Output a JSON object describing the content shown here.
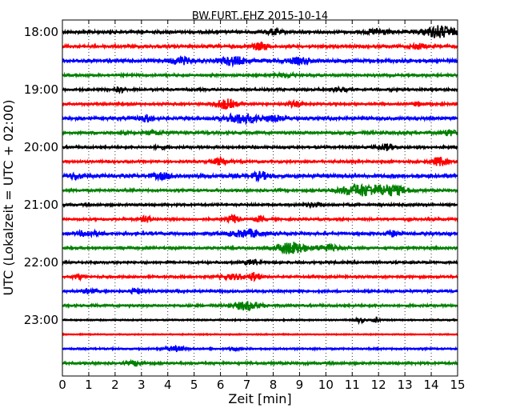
{
  "chart_data": {
    "type": "line",
    "title": "BW.FURT..EHZ 2015-10-14",
    "xlabel": "Zeit  [min]",
    "ylabel": "UTC (Lokalzeit = UTC + 02:00)",
    "xlim": [
      0,
      15
    ],
    "x_ticks": [
      "0",
      "1",
      "2",
      "3",
      "4",
      "5",
      "6",
      "7",
      "8",
      "9",
      "10",
      "11",
      "12",
      "13",
      "14",
      "15"
    ],
    "y_ticks": [
      "18:00",
      "19:00",
      "20:00",
      "21:00",
      "22:00",
      "23:00"
    ],
    "trace_interval_min": 15,
    "grid": "vertical-dotted",
    "colors": [
      "#000000",
      "#ff0000",
      "#0000ff",
      "#008000"
    ],
    "traces": [
      {
        "time": "18:00",
        "color": "#000000",
        "amplitude": 0.25,
        "bursts": [
          {
            "t": 14.3,
            "a": 1.0,
            "w": 0.6
          },
          {
            "t": 12.0,
            "a": 0.5,
            "w": 0.4
          },
          {
            "t": 8.0,
            "a": 0.4,
            "w": 0.3
          }
        ]
      },
      {
        "time": "18:15",
        "color": "#ff0000",
        "amplitude": 0.25,
        "bursts": [
          {
            "t": 7.5,
            "a": 0.6,
            "w": 0.3
          },
          {
            "t": 13.5,
            "a": 0.4,
            "w": 0.3
          }
        ]
      },
      {
        "time": "18:30",
        "color": "#0000ff",
        "amplitude": 0.3,
        "bursts": [
          {
            "t": 6.5,
            "a": 0.6,
            "w": 0.5
          },
          {
            "t": 4.5,
            "a": 0.5,
            "w": 0.4
          },
          {
            "t": 9.0,
            "a": 0.4,
            "w": 0.5
          }
        ]
      },
      {
        "time": "18:45",
        "color": "#008000",
        "amplitude": 0.2,
        "bursts": [
          {
            "t": 8.5,
            "a": 0.3,
            "w": 0.4
          }
        ]
      },
      {
        "time": "19:00",
        "color": "#000000",
        "amplitude": 0.2,
        "bursts": [
          {
            "t": 2.2,
            "a": 0.4,
            "w": 0.2
          },
          {
            "t": 10.5,
            "a": 0.3,
            "w": 0.3
          }
        ]
      },
      {
        "time": "19:15",
        "color": "#ff0000",
        "amplitude": 0.2,
        "bursts": [
          {
            "t": 6.2,
            "a": 0.8,
            "w": 0.4
          },
          {
            "t": 8.8,
            "a": 0.4,
            "w": 0.3
          },
          {
            "t": 13.5,
            "a": 0.3,
            "w": 0.2
          }
        ]
      },
      {
        "time": "19:30",
        "color": "#0000ff",
        "amplitude": 0.25,
        "bursts": [
          {
            "t": 6.8,
            "a": 0.8,
            "w": 0.6
          },
          {
            "t": 3.2,
            "a": 0.5,
            "w": 0.3
          },
          {
            "t": 8.0,
            "a": 0.4,
            "w": 0.4
          }
        ]
      },
      {
        "time": "19:45",
        "color": "#008000",
        "amplitude": 0.25,
        "bursts": [
          {
            "t": 14.7,
            "a": 0.5,
            "w": 0.2
          },
          {
            "t": 3.5,
            "a": 0.3,
            "w": 0.3
          }
        ]
      },
      {
        "time": "20:00",
        "color": "#000000",
        "amplitude": 0.2,
        "bursts": [
          {
            "t": 12.3,
            "a": 0.5,
            "w": 0.3
          },
          {
            "t": 3.7,
            "a": 0.3,
            "w": 0.2
          }
        ]
      },
      {
        "time": "20:15",
        "color": "#ff0000",
        "amplitude": 0.2,
        "bursts": [
          {
            "t": 14.3,
            "a": 0.7,
            "w": 0.3
          },
          {
            "t": 6.0,
            "a": 0.6,
            "w": 0.3
          }
        ]
      },
      {
        "time": "20:30",
        "color": "#0000ff",
        "amplitude": 0.3,
        "bursts": [
          {
            "t": 7.5,
            "a": 0.6,
            "w": 0.3
          },
          {
            "t": 0.5,
            "a": 0.5,
            "w": 0.2
          },
          {
            "t": 3.8,
            "a": 0.4,
            "w": 0.4
          }
        ]
      },
      {
        "time": "20:45",
        "color": "#008000",
        "amplitude": 0.2,
        "bursts": [
          {
            "t": 11.3,
            "a": 1.0,
            "w": 0.8
          },
          {
            "t": 12.5,
            "a": 0.8,
            "w": 0.6
          }
        ]
      },
      {
        "time": "21:00",
        "color": "#000000",
        "amplitude": 0.2,
        "bursts": [
          {
            "t": 9.5,
            "a": 0.3,
            "w": 0.3
          }
        ]
      },
      {
        "time": "21:15",
        "color": "#ff0000",
        "amplitude": 0.2,
        "bursts": [
          {
            "t": 6.5,
            "a": 0.7,
            "w": 0.2
          },
          {
            "t": 3.2,
            "a": 0.5,
            "w": 0.2
          },
          {
            "t": 7.5,
            "a": 0.4,
            "w": 0.2
          }
        ]
      },
      {
        "time": "21:30",
        "color": "#0000ff",
        "amplitude": 0.25,
        "bursts": [
          {
            "t": 7.0,
            "a": 0.6,
            "w": 0.6
          },
          {
            "t": 1.0,
            "a": 0.4,
            "w": 0.4
          },
          {
            "t": 12.5,
            "a": 0.5,
            "w": 0.2
          }
        ]
      },
      {
        "time": "21:45",
        "color": "#008000",
        "amplitude": 0.2,
        "bursts": [
          {
            "t": 8.5,
            "a": 0.9,
            "w": 0.4
          },
          {
            "t": 9.0,
            "a": 0.7,
            "w": 0.3
          },
          {
            "t": 10.0,
            "a": 0.5,
            "w": 0.5
          }
        ]
      },
      {
        "time": "22:00",
        "color": "#000000",
        "amplitude": 0.2,
        "bursts": [
          {
            "t": 7.2,
            "a": 0.4,
            "w": 0.3
          }
        ]
      },
      {
        "time": "22:15",
        "color": "#ff0000",
        "amplitude": 0.2,
        "bursts": [
          {
            "t": 7.3,
            "a": 0.7,
            "w": 0.2
          },
          {
            "t": 0.6,
            "a": 0.4,
            "w": 0.2
          },
          {
            "t": 6.5,
            "a": 0.4,
            "w": 0.5
          }
        ]
      },
      {
        "time": "22:30",
        "color": "#0000ff",
        "amplitude": 0.2,
        "bursts": [
          {
            "t": 2.8,
            "a": 0.5,
            "w": 0.2
          },
          {
            "t": 1.0,
            "a": 0.3,
            "w": 0.3
          }
        ]
      },
      {
        "time": "22:45",
        "color": "#008000",
        "amplitude": 0.2,
        "bursts": [
          {
            "t": 7.0,
            "a": 0.7,
            "w": 0.5
          }
        ]
      },
      {
        "time": "23:00",
        "color": "#000000",
        "amplitude": 0.12,
        "bursts": [
          {
            "t": 11.3,
            "a": 0.4,
            "w": 0.2
          },
          {
            "t": 11.9,
            "a": 0.5,
            "w": 0.1
          }
        ]
      },
      {
        "time": "23:15",
        "color": "#ff0000",
        "amplitude": 0.1,
        "bursts": []
      },
      {
        "time": "23:30",
        "color": "#0000ff",
        "amplitude": 0.15,
        "bursts": [
          {
            "t": 4.3,
            "a": 0.4,
            "w": 0.4
          },
          {
            "t": 6.5,
            "a": 0.3,
            "w": 0.2
          }
        ]
      },
      {
        "time": "23:45",
        "color": "#008000",
        "amplitude": 0.2,
        "bursts": [
          {
            "t": 2.8,
            "a": 0.4,
            "w": 0.3
          }
        ]
      }
    ]
  }
}
